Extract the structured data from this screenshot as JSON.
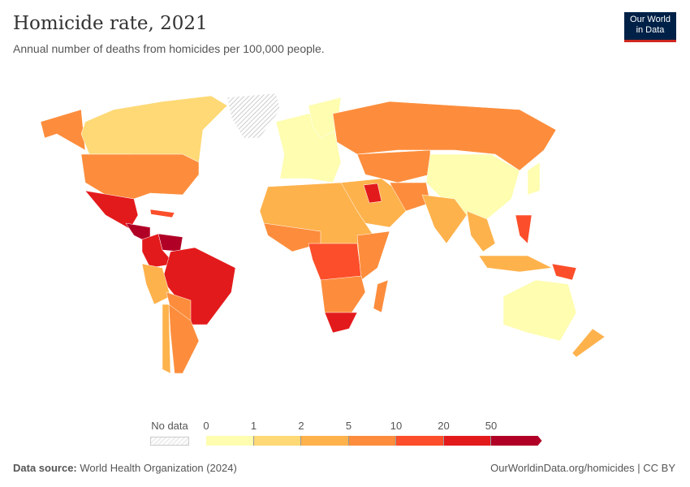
{
  "header": {
    "title": "Homicide rate, 2021",
    "subtitle": "Annual number of deaths from homicides per 100,000 people.",
    "logo_line1": "Our World",
    "logo_line2": "in Data"
  },
  "legend": {
    "no_data_label": "No data",
    "ticks": [
      "0",
      "1",
      "2",
      "5",
      "10",
      "20",
      "50"
    ],
    "colors": [
      "#fefdb0",
      "#fed976",
      "#feb24c",
      "#fd8d3c",
      "#fc4e2a",
      "#e31a1c",
      "#b10026"
    ],
    "no_data_color": "#eeeeee"
  },
  "footer": {
    "source_label": "Data source:",
    "source": "World Health Organization (2024)",
    "link": "OurWorldinData.org/homicides | CC BY"
  }
}
